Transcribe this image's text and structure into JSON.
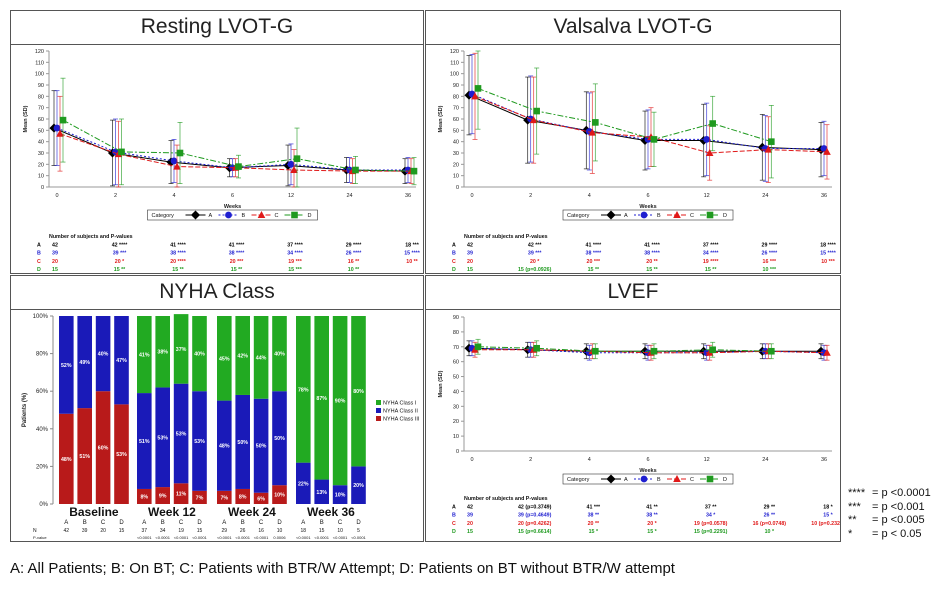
{
  "caption": "A: All Patients; B: On BT; C: Patients with BTR/W Attempt; D: Patients on BT without BTR/W attempt",
  "colors": {
    "A": "#000000",
    "B": "#1f1fd0",
    "C": "#e01919",
    "D": "#1f9a1f"
  },
  "significance_legend": [
    {
      "stars": "****",
      "text": "= p <0.0001"
    },
    {
      "stars": "***",
      "text": "= p <0.001"
    },
    {
      "stars": "**",
      "text": "= p <0.005"
    },
    {
      "stars": "*",
      "text": "= p < 0.05"
    }
  ],
  "chart_data": [
    {
      "id": "resting",
      "type": "line",
      "title": "Resting LVOT-G",
      "xlabel": "Weeks",
      "ylabel": "Mean (SD)",
      "ylim": [
        0,
        120
      ],
      "yticks": [
        0,
        10,
        20,
        30,
        40,
        50,
        60,
        70,
        80,
        90,
        100,
        110,
        120
      ],
      "xticks": [
        0,
        2,
        4,
        6,
        12,
        24,
        36
      ],
      "series": [
        {
          "name": "A",
          "values": [
            52,
            30,
            22,
            17,
            19,
            15,
            14
          ],
          "sd": [
            33,
            29,
            19,
            8,
            18,
            11,
            11
          ]
        },
        {
          "name": "B",
          "values": [
            52,
            31,
            23,
            17,
            20,
            15,
            15
          ],
          "sd": [
            33,
            29,
            19,
            8,
            18,
            11,
            11
          ]
        },
        {
          "name": "C",
          "values": [
            47,
            29,
            18,
            17,
            15,
            14,
            14
          ],
          "sd": [
            33,
            29,
            19,
            8,
            18,
            11,
            11
          ]
        },
        {
          "name": "D",
          "values": [
            59,
            31,
            30,
            18,
            25,
            15,
            14
          ],
          "sd": [
            37,
            29,
            27,
            10,
            27,
            12,
            12
          ]
        }
      ],
      "table_title": "Number of subjects and P-values",
      "table": [
        {
          "label": "A",
          "cells": [
            "42",
            "42 ****",
            "41 ****",
            "41 ****",
            "37 ****",
            "29 ****",
            "18 ***"
          ]
        },
        {
          "label": "B",
          "cells": [
            "39",
            "39 ***",
            "38 ****",
            "38 ****",
            "34 ****",
            "26 ****",
            "15 ****"
          ]
        },
        {
          "label": "C",
          "cells": [
            "20",
            "20 *",
            "20 ****",
            "20 ***",
            "19 ***",
            "16 **",
            "10 **"
          ]
        },
        {
          "label": "D",
          "cells": [
            "15",
            "15 **",
            "15 **",
            "15 **",
            "15 ***",
            "10 **",
            ""
          ]
        }
      ]
    },
    {
      "id": "valsalva",
      "type": "line",
      "title": "Valsalva LVOT-G",
      "xlabel": "Weeks",
      "ylabel": "Mean (SD)",
      "ylim": [
        0,
        120
      ],
      "yticks": [
        0,
        10,
        20,
        30,
        40,
        50,
        60,
        70,
        80,
        90,
        100,
        110,
        120
      ],
      "xticks": [
        0,
        2,
        4,
        6,
        12,
        24,
        36
      ],
      "series": [
        {
          "name": "A",
          "values": [
            81,
            59,
            50,
            41,
            41,
            35,
            33
          ],
          "sd": [
            35,
            38,
            34,
            26,
            32,
            29,
            24
          ]
        },
        {
          "name": "B",
          "values": [
            82,
            60,
            49,
            42,
            42,
            34,
            34
          ],
          "sd": [
            35,
            38,
            34,
            26,
            32,
            29,
            24
          ]
        },
        {
          "name": "C",
          "values": [
            80,
            59,
            48,
            44,
            30,
            33,
            31
          ],
          "sd": [
            38,
            38,
            36,
            26,
            24,
            29,
            24
          ]
        },
        {
          "name": "D",
          "values": [
            87,
            67,
            57,
            42,
            56,
            40,
            null
          ],
          "sd": [
            36,
            38,
            34,
            24,
            24,
            32,
            null
          ]
        }
      ],
      "table_title": "Number of subjects and P-values",
      "table": [
        {
          "label": "A",
          "cells": [
            "42",
            "42 ***",
            "41 ****",
            "41 ****",
            "37 ****",
            "29 ****",
            "18 ****"
          ]
        },
        {
          "label": "B",
          "cells": [
            "39",
            "39 ***",
            "38 ****",
            "38 ****",
            "34 ****",
            "26 ****",
            "15 ****"
          ]
        },
        {
          "label": "C",
          "cells": [
            "20",
            "20 *",
            "20 ***",
            "20 **",
            "19 ****",
            "16 ***",
            "10 ***"
          ]
        },
        {
          "label": "D",
          "cells": [
            "15",
            "15 (p=0.0926)",
            "15 **",
            "15 **",
            "15 **",
            "10 ***",
            ""
          ]
        }
      ]
    },
    {
      "id": "nyha",
      "type": "bar",
      "title": "NYHA Class",
      "ylabel": "Patients (%)",
      "ylim": [
        0,
        100
      ],
      "yticks": [
        "0%",
        "20%",
        "40%",
        "60%",
        "80%",
        "100%"
      ],
      "legend": [
        "NYHA Class I",
        "NYHA Class II",
        "NYHA Class III"
      ],
      "class_colors": [
        "#22aa22",
        "#1a1ab8",
        "#b81a1a"
      ],
      "groups": [
        {
          "name": "Baseline",
          "N": [
            "42",
            "39",
            "20",
            "15"
          ],
          "pvalue": [
            "",
            "",
            "",
            ""
          ],
          "bars": [
            {
              "cat": "A",
              "I": 0,
              "II": 52,
              "III": 48
            },
            {
              "cat": "B",
              "I": 0,
              "II": 49,
              "III": 51
            },
            {
              "cat": "C",
              "I": 0,
              "II": 40,
              "III": 60
            },
            {
              "cat": "D",
              "I": 0,
              "II": 47,
              "III": 53
            }
          ]
        },
        {
          "name": "Week 12",
          "N": [
            "37",
            "34",
            "19",
            "15"
          ],
          "pvalue": [
            "<0.0001",
            "<0.0001",
            "<0.0001",
            "<0.0001"
          ],
          "bars": [
            {
              "cat": "A",
              "I": 41,
              "II": 51,
              "III": 8
            },
            {
              "cat": "B",
              "I": 38,
              "II": 53,
              "III": 9
            },
            {
              "cat": "C",
              "I": 37,
              "II": 53,
              "III": 11
            },
            {
              "cat": "D",
              "I": 40,
              "II": 53,
              "III": 7
            }
          ]
        },
        {
          "name": "Week 24",
          "N": [
            "29",
            "26",
            "16",
            "10"
          ],
          "pvalue": [
            "<0.0001",
            "<0.0001",
            "<0.0001",
            "0.0006"
          ],
          "bars": [
            {
              "cat": "A",
              "I": 45,
              "II": 48,
              "III": 7
            },
            {
              "cat": "B",
              "I": 42,
              "II": 50,
              "III": 8
            },
            {
              "cat": "C",
              "I": 44,
              "II": 50,
              "III": 6
            },
            {
              "cat": "D",
              "I": 40,
              "II": 50,
              "III": 10
            }
          ]
        },
        {
          "name": "Week 36",
          "N": [
            "18",
            "15",
            "10",
            "5"
          ],
          "pvalue": [
            "<0.0001",
            "<0.0001",
            "<0.0001",
            "<0.0001"
          ],
          "bars": [
            {
              "cat": "A",
              "I": 78,
              "II": 22,
              "III": 0
            },
            {
              "cat": "B",
              "I": 87,
              "II": 13,
              "III": 0
            },
            {
              "cat": "C",
              "I": 90,
              "II": 10,
              "III": 0
            },
            {
              "cat": "D",
              "I": 80,
              "II": 20,
              "III": 0
            }
          ]
        }
      ],
      "row_labels": [
        "N",
        "P-value"
      ]
    },
    {
      "id": "lvef",
      "type": "line",
      "title": "LVEF",
      "xlabel": "Weeks",
      "ylabel": "Mean (SD)",
      "ylim": [
        0,
        90
      ],
      "yticks": [
        0,
        10,
        20,
        30,
        40,
        50,
        60,
        70,
        80,
        90
      ],
      "xticks": [
        0,
        2,
        4,
        6,
        12,
        24,
        36
      ],
      "series": [
        {
          "name": "A",
          "values": [
            69,
            68,
            67,
            67,
            67,
            67,
            67
          ],
          "sd": [
            5,
            5,
            5,
            5,
            5,
            5,
            5
          ]
        },
        {
          "name": "B",
          "values": [
            69,
            68,
            66,
            66,
            66,
            67,
            66
          ],
          "sd": [
            5,
            5,
            5,
            5,
            5,
            5,
            5
          ]
        },
        {
          "name": "C",
          "values": [
            68,
            68,
            67,
            66,
            66,
            67,
            66
          ],
          "sd": [
            5,
            5,
            5,
            5,
            5,
            5,
            5
          ]
        },
        {
          "name": "D",
          "values": [
            70,
            69,
            67,
            67,
            68,
            67,
            null
          ],
          "sd": [
            5,
            5,
            5,
            5,
            5,
            5,
            null
          ]
        }
      ],
      "table_title": "Number of subjects and P-values",
      "table": [
        {
          "label": "A",
          "cells": [
            "42",
            "42 (p=0.3749)",
            "41 ***",
            "41 **",
            "37 **",
            "29 **",
            "18 *"
          ]
        },
        {
          "label": "B",
          "cells": [
            "39",
            "39 (p=0.4649)",
            "38 **",
            "38 **",
            "34 *",
            "26 **",
            "15 *"
          ]
        },
        {
          "label": "C",
          "cells": [
            "20",
            "20 (p=0.4262)",
            "20 **",
            "20 *",
            "19 (p=0.0578)",
            "16 (p=0.0748)",
            "10 (p=0.2320)"
          ]
        },
        {
          "label": "D",
          "cells": [
            "15",
            "15 (p=0.6614)",
            "15 *",
            "15 *",
            "15 (p=0.2291)",
            "10 *",
            ""
          ]
        }
      ]
    }
  ],
  "legend_title": "Category",
  "legend_items": [
    "A",
    "B",
    "C",
    "D"
  ]
}
